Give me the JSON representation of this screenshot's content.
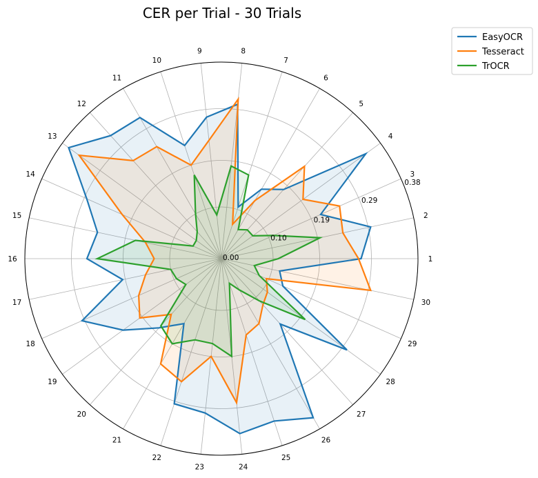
{
  "chart_data": {
    "type": "radar",
    "title": "CER per Trial - 30 Trials",
    "categories": [
      "1",
      "2",
      "3",
      "4",
      "5",
      "6",
      "7",
      "8",
      "9",
      "10",
      "11",
      "12",
      "13",
      "14",
      "15",
      "16",
      "17",
      "18",
      "19",
      "20",
      "21",
      "22",
      "23",
      "24",
      "25",
      "26",
      "27",
      "28",
      "29",
      "30"
    ],
    "r_ticks": [
      0.0,
      0.1,
      0.19,
      0.29,
      0.38
    ],
    "r_tick_labels": [
      "0.00",
      "0.10",
      "0.19",
      "0.29",
      "0.38"
    ],
    "rlim": [
      0,
      0.38
    ],
    "grid": true,
    "legend_position": "top-right, outside plot",
    "series": [
      {
        "name": "EasyOCR",
        "color": "#1f77b4",
        "values": [
          0.27,
          0.295,
          0.21,
          0.345,
          0.18,
          0.155,
          0.105,
          0.3,
          0.275,
          0.23,
          0.315,
          0.32,
          0.365,
          0.285,
          0.245,
          0.26,
          0.195,
          0.295,
          0.235,
          0.18,
          0.145,
          0.295,
          0.3,
          0.34,
          0.33,
          0.355,
          0.17,
          0.3,
          0.13,
          0.115
        ]
      },
      {
        "name": "Tesseract",
        "color": "#ff7f0e",
        "values": [
          0.265,
          0.24,
          0.25,
          0.195,
          0.24,
          0.13,
          0.07,
          0.31,
          0.23,
          0.19,
          0.25,
          0.255,
          0.34,
          0.21,
          0.15,
          0.13,
          0.15,
          0.175,
          0.195,
          0.145,
          0.235,
          0.25,
          0.19,
          0.28,
          0.155,
          0.145,
          0.12,
          0.11,
          0.095,
          0.295
        ]
      },
      {
        "name": "TrOCR",
        "color": "#2ca02c",
        "values": [
          0.11,
          0.195,
          0.11,
          0.075,
          0.075,
          0.065,
          0.17,
          0.18,
          0.085,
          0.17,
          0.1,
          0.07,
          0.06,
          0.06,
          0.17,
          0.24,
          0.1,
          0.095,
          0.085,
          0.175,
          0.19,
          0.165,
          0.165,
          0.19,
          0.05,
          0.07,
          0.11,
          0.2,
          0.08,
          0.065
        ]
      }
    ]
  }
}
